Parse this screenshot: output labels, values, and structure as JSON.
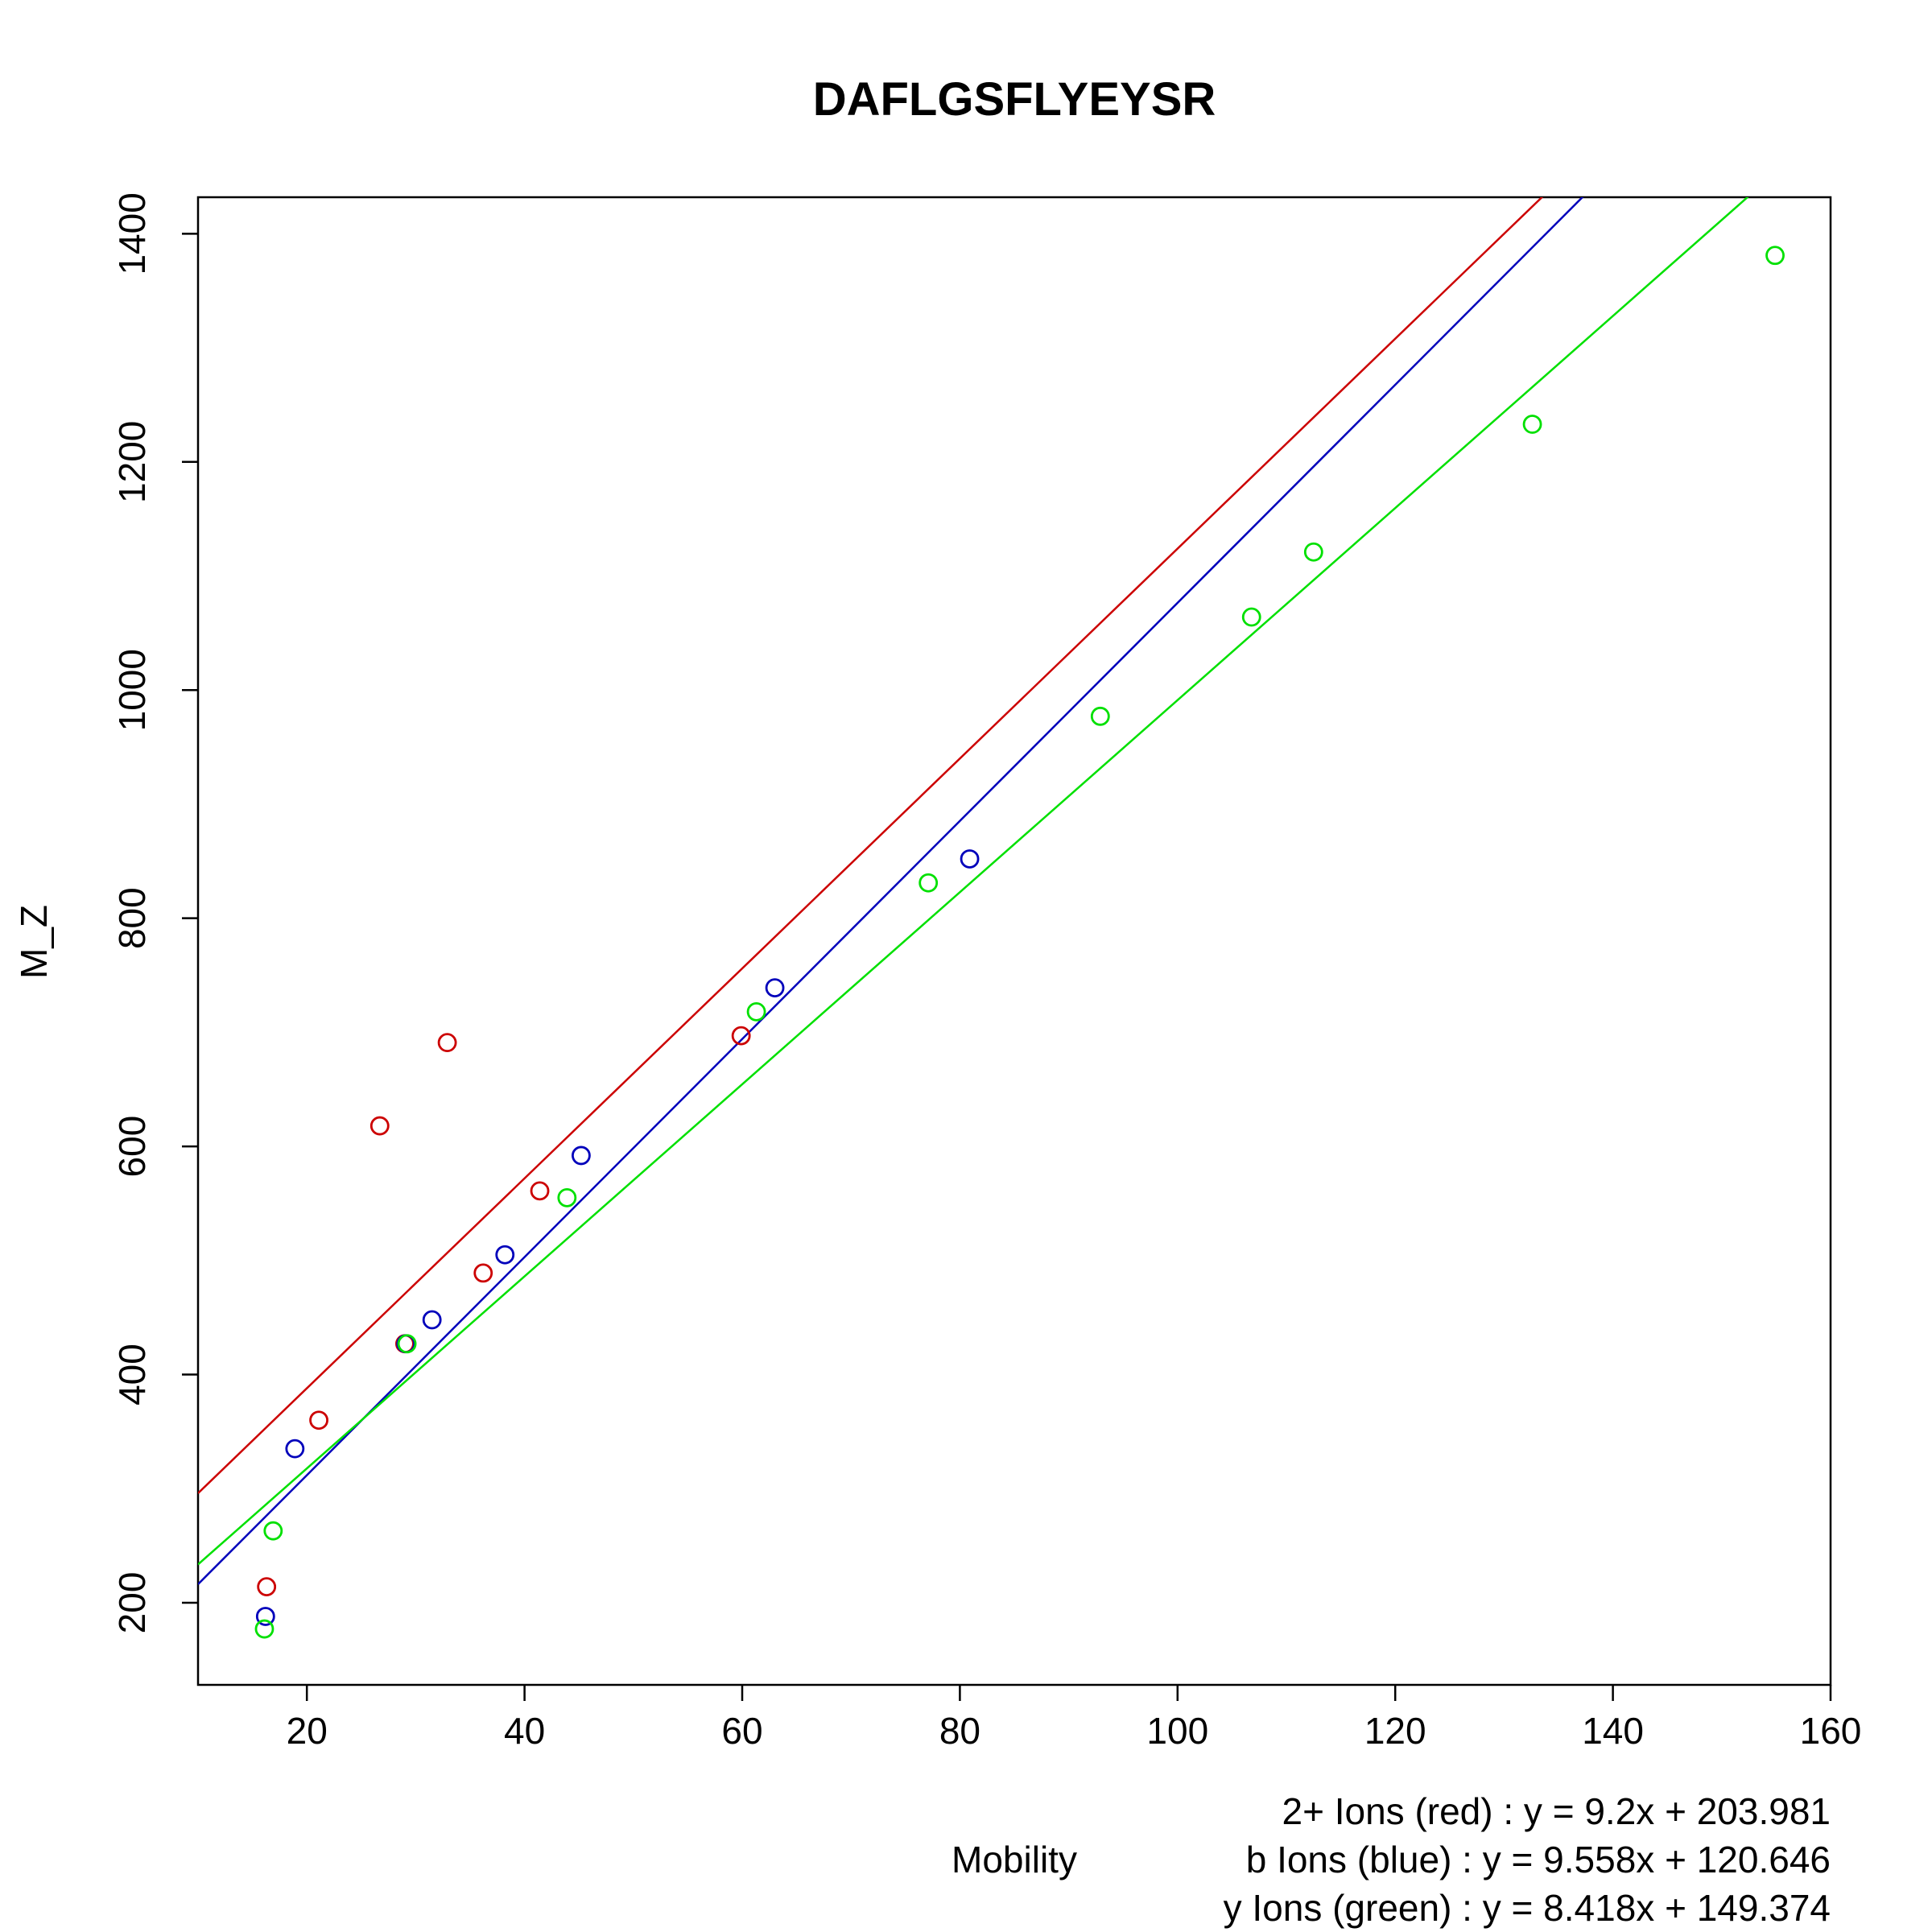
{
  "chart_data": {
    "type": "scatter",
    "title": "DAFLGSFLYEYSR",
    "xlabel": "Mobility",
    "ylabel": "M_Z",
    "xlim": [
      10,
      160
    ],
    "ylim": [
      128,
      1432
    ],
    "xticks": [
      20,
      40,
      60,
      80,
      100,
      120,
      140,
      160
    ],
    "yticks": [
      200,
      400,
      600,
      800,
      1000,
      1200,
      1400
    ],
    "grid": false,
    "series": [
      {
        "name": "2+ Ions (red)",
        "color": "#cc0000",
        "points": [
          [
            16.3,
            214
          ],
          [
            21.1,
            360
          ],
          [
            26.7,
            618
          ],
          [
            29.0,
            427
          ],
          [
            32.9,
            691
          ],
          [
            36.2,
            489
          ],
          [
            41.4,
            561
          ],
          [
            59.9,
            697
          ]
        ],
        "fit": {
          "slope": 9.2,
          "intercept": 203.981
        }
      },
      {
        "name": "b Ions (blue)",
        "color": "#0000bb",
        "points": [
          [
            16.2,
            188
          ],
          [
            18.9,
            335
          ],
          [
            29.1,
            427
          ],
          [
            31.5,
            448
          ],
          [
            38.2,
            505
          ],
          [
            45.2,
            592
          ],
          [
            63.0,
            739
          ],
          [
            80.9,
            852
          ]
        ],
        "fit": {
          "slope": 9.558,
          "intercept": 120.646
        }
      },
      {
        "name": "y Ions (green)",
        "color": "#00e000",
        "points": [
          [
            16.1,
            177
          ],
          [
            16.9,
            263
          ],
          [
            29.2,
            427
          ],
          [
            43.9,
            555
          ],
          [
            61.3,
            718
          ],
          [
            77.1,
            831
          ],
          [
            92.9,
            977
          ],
          [
            106.8,
            1064
          ],
          [
            112.5,
            1121
          ],
          [
            132.6,
            1233
          ],
          [
            154.9,
            1381
          ]
        ],
        "fit": {
          "slope": 8.418,
          "intercept": 149.374
        }
      }
    ],
    "equations": [
      {
        "label": "2+ Ions (red)",
        "equation": "y = 9.2x + 203.981"
      },
      {
        "label": "b Ions (blue)",
        "equation": "y = 9.558x + 120.646"
      },
      {
        "label": "y Ions (green)",
        "equation": "y = 8.418x + 149.374"
      }
    ]
  }
}
